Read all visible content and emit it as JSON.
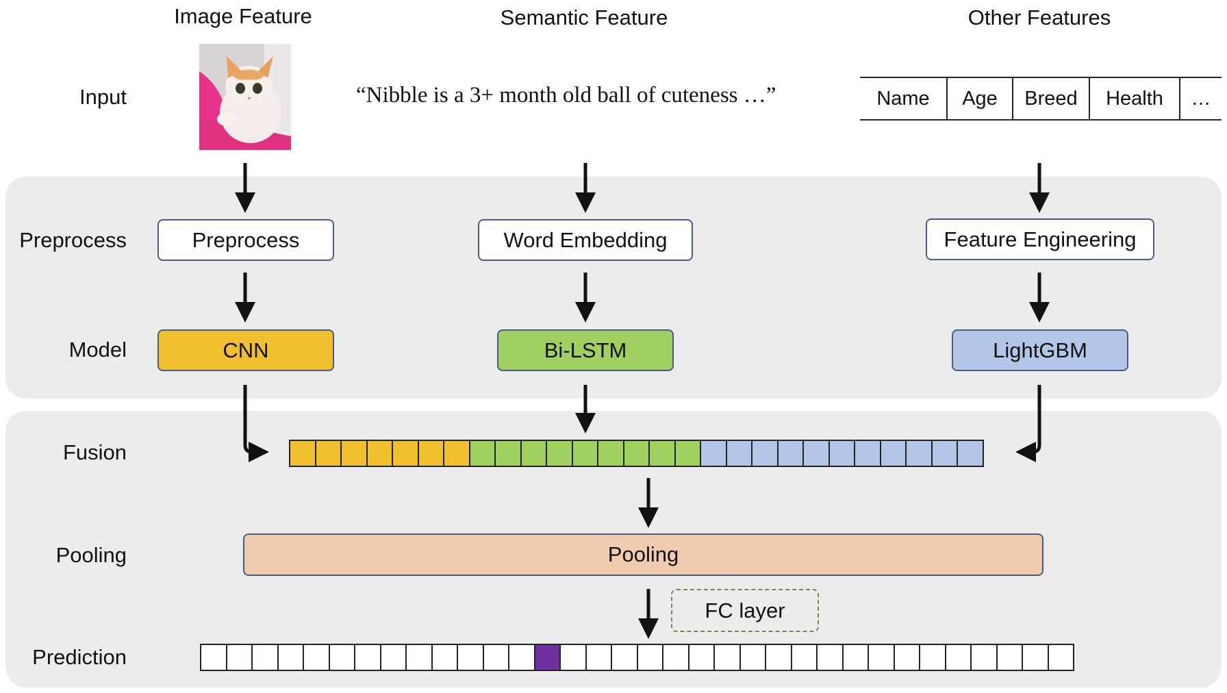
{
  "columns": {
    "image": "Image Feature",
    "semantic": "Semantic Feature",
    "other": "Other Features"
  },
  "rows": {
    "input": "Input",
    "preprocess": "Preprocess",
    "model": "Model",
    "fusion": "Fusion",
    "pooling": "Pooling",
    "prediction": "Prediction"
  },
  "input": {
    "quote": "“Nibble is a 3+ month old ball of cuteness …”",
    "table_cells": [
      "Name",
      "Age",
      "Breed",
      "Health",
      "…"
    ]
  },
  "boxes": {
    "preprocess": "Preprocess",
    "word_embedding": "Word Embedding",
    "feature_engineering": "Feature Engineering",
    "cnn": "CNN",
    "bilstm": "Bi-LSTM",
    "lightgbm": "LightGBM",
    "pooling": "Pooling",
    "fc_layer": "FC layer"
  },
  "fusion_vector": {
    "segments": [
      {
        "name": "cnn",
        "count": 7,
        "color": "#f0c030"
      },
      {
        "name": "bilstm",
        "count": 9,
        "color": "#a0d060"
      },
      {
        "name": "lightgbm",
        "count": 11,
        "color": "#b4c6e7"
      }
    ]
  },
  "prediction_vector": {
    "count": 34,
    "highlight_index": 13,
    "highlight_color": "#7030a0"
  },
  "colors": {
    "panel": "#ececec",
    "cnn": "#f0c030",
    "bilstm": "#a0d060",
    "lightgbm": "#b4c6e7",
    "pooling": "#f0cbb0",
    "box_border": "#4a5a86",
    "fc_border": "#6a8a4a"
  }
}
